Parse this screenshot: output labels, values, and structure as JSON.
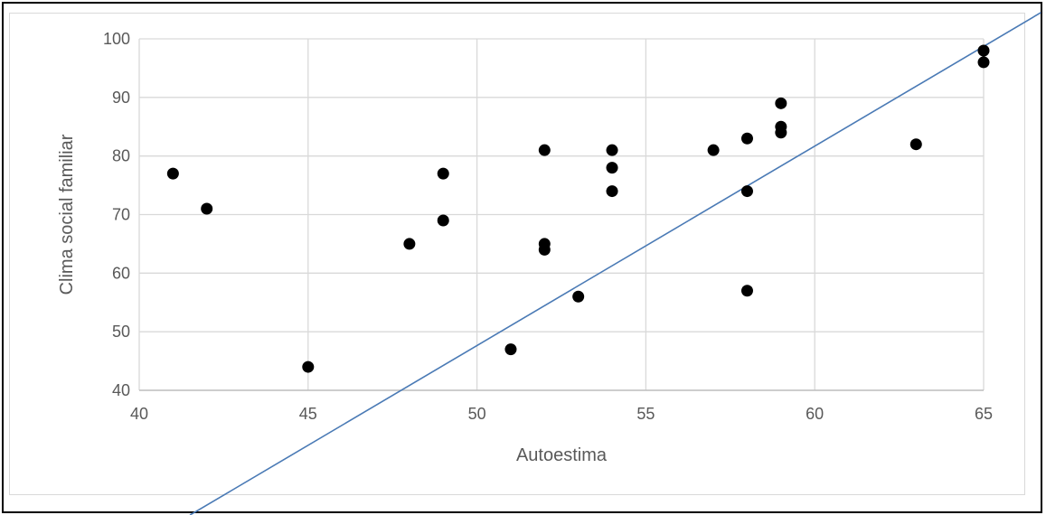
{
  "chart_data": {
    "type": "scatter",
    "title": "",
    "xlabel": "Autoestima",
    "ylabel": "Clima social familiar",
    "xlim": [
      40,
      65
    ],
    "ylim": [
      40,
      100
    ],
    "x_ticks": [
      40,
      45,
      50,
      55,
      60,
      65
    ],
    "y_ticks": [
      40,
      50,
      60,
      70,
      80,
      90,
      100
    ],
    "grid": true,
    "legend": "none",
    "marker_color": "#000000",
    "trendline_color": "#4a7ab5",
    "series": [
      {
        "points": [
          {
            "x": 41,
            "y": 77
          },
          {
            "x": 42,
            "y": 71
          },
          {
            "x": 45,
            "y": 44
          },
          {
            "x": 48,
            "y": 65
          },
          {
            "x": 49,
            "y": 77
          },
          {
            "x": 49,
            "y": 69
          },
          {
            "x": 51,
            "y": 47
          },
          {
            "x": 52,
            "y": 81
          },
          {
            "x": 52,
            "y": 65
          },
          {
            "x": 52,
            "y": 64
          },
          {
            "x": 53,
            "y": 56
          },
          {
            "x": 54,
            "y": 81
          },
          {
            "x": 54,
            "y": 78
          },
          {
            "x": 54,
            "y": 74
          },
          {
            "x": 57,
            "y": 81
          },
          {
            "x": 58,
            "y": 83
          },
          {
            "x": 58,
            "y": 74
          },
          {
            "x": 58,
            "y": 57
          },
          {
            "x": 59,
            "y": 89
          },
          {
            "x": 59,
            "y": 85
          },
          {
            "x": 59,
            "y": 84
          },
          {
            "x": 63,
            "y": 82
          },
          {
            "x": 65,
            "y": 98
          },
          {
            "x": 65,
            "y": 96
          }
        ]
      }
    ],
    "trendline": {
      "type": "linear",
      "points": [
        {
          "x": 41.5,
          "y": 18.7
        },
        {
          "x": 66.7,
          "y": 104.5
        }
      ]
    }
  }
}
